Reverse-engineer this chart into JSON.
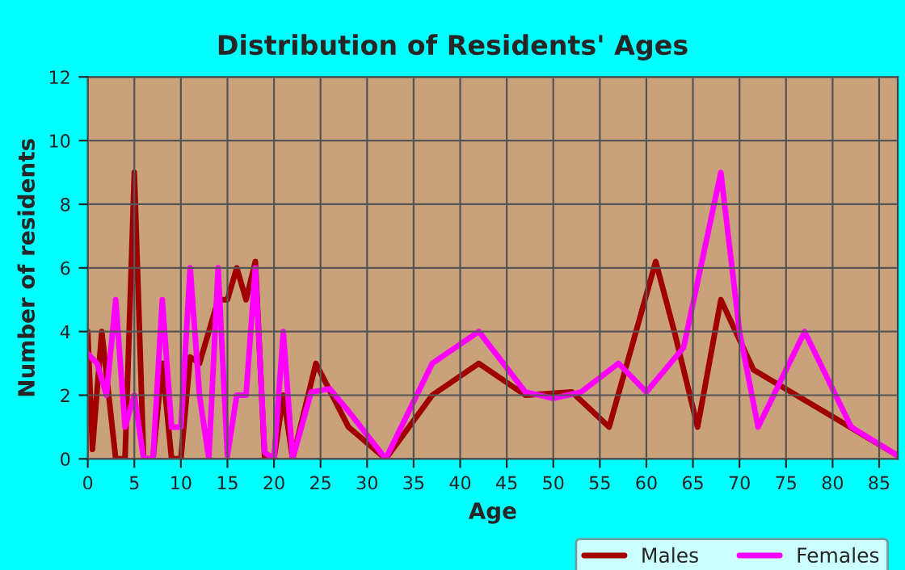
{
  "chart_data": {
    "type": "line",
    "title": "Distribution of Residents' Ages",
    "xlabel": "Age",
    "ylabel": "Number of residents",
    "xlim": [
      0,
      87
    ],
    "xticks": [
      0,
      5,
      10,
      15,
      20,
      25,
      30,
      35,
      40,
      45,
      50,
      55,
      60,
      65,
      70,
      75,
      80,
      85
    ],
    "ylim": [
      0,
      12
    ],
    "yticks": [
      0,
      2,
      4,
      6,
      8,
      10,
      12
    ],
    "grid": true,
    "legend": "bottom right",
    "marker": "none",
    "line_style": "solid",
    "series": [
      {
        "name": "Males",
        "color": "#a00000",
        "x": [
          0,
          0.5,
          1.5,
          3,
          4,
          5,
          6,
          7,
          8,
          9,
          10,
          11,
          12,
          14,
          15,
          16,
          17,
          18,
          19,
          20,
          21,
          22,
          24.5,
          28,
          32,
          37,
          42,
          47,
          52,
          56,
          61,
          63,
          65.5,
          68,
          71.5,
          79,
          87
        ],
        "values": [
          4,
          0.3,
          4,
          0,
          0,
          9,
          0,
          0,
          3,
          0,
          0,
          3.2,
          3,
          5,
          5,
          6,
          5,
          6.2,
          0,
          0,
          2,
          0,
          3,
          1,
          0,
          2,
          3,
          2,
          2.1,
          1,
          6.2,
          4,
          1,
          5,
          2.8,
          1.5,
          0.1
        ]
      },
      {
        "name": "Females",
        "color": "#ff00ff",
        "x": [
          0,
          1,
          2,
          3,
          4,
          5,
          6,
          7,
          8,
          9,
          10,
          11,
          12,
          13,
          14,
          15,
          16,
          17,
          18,
          19,
          20,
          21,
          22,
          24,
          26,
          28,
          32,
          37,
          42,
          47,
          50,
          53,
          57,
          60,
          64,
          68,
          70,
          72,
          77,
          82,
          87
        ],
        "values": [
          3.3,
          3,
          2,
          5,
          1,
          2,
          0,
          0,
          5,
          1,
          1,
          6,
          2,
          0,
          6,
          0.1,
          2,
          2,
          6,
          0.2,
          0,
          4,
          0,
          2.1,
          2.2,
          1.5,
          0,
          3,
          4,
          2.1,
          1.9,
          2.1,
          3,
          2.1,
          3.5,
          9,
          4,
          1,
          4,
          1,
          0.1
        ]
      }
    ]
  }
}
